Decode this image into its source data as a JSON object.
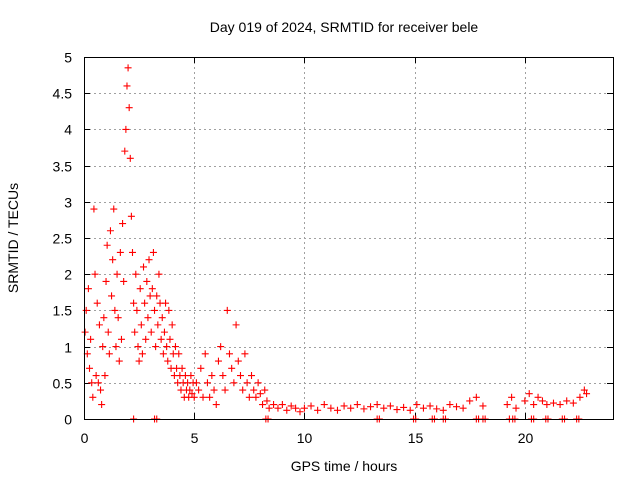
{
  "chart_data": {
    "type": "scatter",
    "title": "Day 019 of 2024, SRMTID for receiver bele",
    "xlabel": "GPS time / hours",
    "ylabel": "SRMTID / TECUs",
    "xlim": [
      0,
      24
    ],
    "ylim": [
      0,
      5
    ],
    "xticks": [
      0,
      5,
      10,
      15,
      20
    ],
    "xtick_labels": [
      "0",
      "5",
      "10",
      "15",
      "20"
    ],
    "yticks": [
      0,
      0.5,
      1,
      1.5,
      2,
      2.5,
      3,
      3.5,
      4,
      4.5,
      5
    ],
    "ytick_labels": [
      "0",
      "0.5",
      "1",
      "1.5",
      "2",
      "2.5",
      "3",
      "3.5",
      "4",
      "4.5",
      "5"
    ],
    "grid": true,
    "marker": "+",
    "color": "#ff0000",
    "series": [
      {
        "name": "SRMTID",
        "points": [
          [
            0.05,
            1.2
          ],
          [
            0.1,
            1.5
          ],
          [
            0.15,
            0.9
          ],
          [
            0.2,
            1.8
          ],
          [
            0.25,
            0.7
          ],
          [
            0.3,
            1.1
          ],
          [
            0.35,
            0.5
          ],
          [
            0.4,
            0.3
          ],
          [
            0.45,
            2.9
          ],
          [
            0.5,
            2.0
          ],
          [
            0.55,
            0.6
          ],
          [
            0.6,
            1.6
          ],
          [
            0.65,
            0.5
          ],
          [
            0.7,
            1.3
          ],
          [
            0.75,
            0.4
          ],
          [
            0.8,
            0.2
          ],
          [
            0.85,
            1.0
          ],
          [
            0.9,
            1.4
          ],
          [
            0.95,
            0.6
          ],
          [
            1.0,
            1.9
          ],
          [
            1.05,
            2.4
          ],
          [
            1.1,
            1.2
          ],
          [
            1.15,
            0.9
          ],
          [
            1.2,
            2.6
          ],
          [
            1.25,
            1.7
          ],
          [
            1.3,
            2.2
          ],
          [
            1.35,
            2.9
          ],
          [
            1.4,
            1.5
          ],
          [
            1.45,
            1.0
          ],
          [
            1.5,
            2.0
          ],
          [
            1.55,
            1.4
          ],
          [
            1.6,
            0.8
          ],
          [
            1.65,
            2.3
          ],
          [
            1.7,
            1.1
          ],
          [
            1.75,
            2.7
          ],
          [
            1.8,
            1.9
          ],
          [
            1.85,
            3.7
          ],
          [
            1.9,
            4.0
          ],
          [
            1.95,
            4.6
          ],
          [
            2.0,
            4.85
          ],
          [
            2.05,
            4.3
          ],
          [
            2.1,
            3.6
          ],
          [
            2.15,
            2.8
          ],
          [
            2.2,
            2.3
          ],
          [
            2.25,
            1.6
          ],
          [
            2.3,
            1.2
          ],
          [
            2.35,
            2.0
          ],
          [
            2.4,
            1.5
          ],
          [
            2.45,
            1.0
          ],
          [
            2.5,
            0.8
          ],
          [
            2.55,
            1.8
          ],
          [
            2.6,
            1.3
          ],
          [
            2.65,
            0.9
          ],
          [
            2.7,
            2.1
          ],
          [
            2.75,
            1.6
          ],
          [
            2.8,
            1.1
          ],
          [
            2.85,
            1.9
          ],
          [
            2.9,
            1.4
          ],
          [
            2.95,
            2.2
          ],
          [
            3.0,
            1.7
          ],
          [
            3.05,
            1.2
          ],
          [
            3.1,
            1.8
          ],
          [
            3.15,
            2.3
          ],
          [
            3.2,
            1.5
          ],
          [
            3.25,
            1.0
          ],
          [
            3.3,
            1.7
          ],
          [
            3.35,
            1.3
          ],
          [
            3.4,
            2.0
          ],
          [
            3.45,
            1.6
          ],
          [
            3.5,
            1.1
          ],
          [
            3.55,
            1.4
          ],
          [
            3.6,
            0.9
          ],
          [
            3.65,
            1.2
          ],
          [
            3.7,
            1.6
          ],
          [
            3.75,
            1.0
          ],
          [
            3.8,
            0.8
          ],
          [
            3.85,
            1.5
          ],
          [
            3.9,
            1.1
          ],
          [
            3.95,
            0.7
          ],
          [
            4.0,
            1.3
          ],
          [
            4.05,
            0.9
          ],
          [
            4.1,
            0.6
          ],
          [
            4.15,
            1.0
          ],
          [
            4.2,
            0.7
          ],
          [
            4.25,
            0.5
          ],
          [
            4.3,
            0.9
          ],
          [
            4.35,
            0.6
          ],
          [
            4.4,
            0.4
          ],
          [
            4.45,
            0.7
          ],
          [
            4.5,
            0.5
          ],
          [
            4.55,
            0.3
          ],
          [
            4.6,
            0.6
          ],
          [
            4.65,
            0.4
          ],
          [
            4.7,
            0.5
          ],
          [
            4.75,
            0.3
          ],
          [
            4.8,
            0.4
          ],
          [
            4.85,
            0.6
          ],
          [
            4.9,
            0.35
          ],
          [
            4.95,
            0.5
          ],
          [
            5.0,
            0.3
          ],
          [
            5.1,
            0.5
          ],
          [
            5.2,
            0.4
          ],
          [
            5.3,
            0.7
          ],
          [
            5.4,
            0.3
          ],
          [
            5.5,
            0.9
          ],
          [
            5.6,
            0.5
          ],
          [
            5.7,
            0.3
          ],
          [
            5.8,
            0.6
          ],
          [
            5.9,
            0.4
          ],
          [
            6.0,
            0.2
          ],
          [
            6.1,
            0.8
          ],
          [
            6.2,
            1.0
          ],
          [
            6.3,
            0.6
          ],
          [
            6.4,
            0.4
          ],
          [
            6.5,
            1.5
          ],
          [
            6.6,
            0.9
          ],
          [
            6.7,
            0.7
          ],
          [
            6.8,
            0.5
          ],
          [
            6.9,
            1.3
          ],
          [
            7.0,
            0.8
          ],
          [
            7.1,
            0.6
          ],
          [
            7.2,
            0.4
          ],
          [
            7.3,
            0.9
          ],
          [
            7.4,
            0.5
          ],
          [
            7.5,
            0.3
          ],
          [
            7.6,
            0.6
          ],
          [
            7.7,
            0.4
          ],
          [
            7.8,
            0.3
          ],
          [
            7.9,
            0.5
          ],
          [
            8.0,
            0.35
          ],
          [
            8.1,
            0.2
          ],
          [
            8.2,
            0.4
          ],
          [
            8.3,
            0.25
          ],
          [
            8.4,
            0.15
          ],
          [
            8.6,
            0.2
          ],
          [
            8.8,
            0.15
          ],
          [
            9.0,
            0.2
          ],
          [
            9.2,
            0.12
          ],
          [
            9.4,
            0.18
          ],
          [
            9.6,
            0.15
          ],
          [
            9.8,
            0.1
          ],
          [
            10.0,
            0.15
          ],
          [
            10.3,
            0.18
          ],
          [
            10.6,
            0.12
          ],
          [
            10.9,
            0.2
          ],
          [
            11.2,
            0.15
          ],
          [
            11.5,
            0.12
          ],
          [
            11.8,
            0.18
          ],
          [
            12.1,
            0.15
          ],
          [
            12.4,
            0.2
          ],
          [
            12.7,
            0.14
          ],
          [
            13.0,
            0.17
          ],
          [
            13.3,
            0.2
          ],
          [
            13.6,
            0.15
          ],
          [
            13.9,
            0.18
          ],
          [
            14.2,
            0.13
          ],
          [
            14.5,
            0.16
          ],
          [
            14.8,
            0.12
          ],
          [
            15.1,
            0.2
          ],
          [
            15.4,
            0.15
          ],
          [
            15.7,
            0.18
          ],
          [
            16.0,
            0.14
          ],
          [
            16.3,
            0.12
          ],
          [
            16.6,
            0.2
          ],
          [
            16.9,
            0.17
          ],
          [
            17.2,
            0.15
          ],
          [
            17.5,
            0.25
          ],
          [
            17.8,
            0.3
          ],
          [
            18.1,
            0.18
          ],
          [
            19.2,
            0.2
          ],
          [
            19.4,
            0.3
          ],
          [
            19.6,
            0.15
          ],
          [
            20.0,
            0.25
          ],
          [
            20.2,
            0.35
          ],
          [
            20.4,
            0.2
          ],
          [
            20.6,
            0.3
          ],
          [
            20.8,
            0.25
          ],
          [
            21.0,
            0.2
          ],
          [
            21.3,
            0.22
          ],
          [
            21.6,
            0.2
          ],
          [
            21.9,
            0.25
          ],
          [
            22.2,
            0.22
          ],
          [
            22.5,
            0.3
          ],
          [
            22.7,
            0.4
          ],
          [
            22.8,
            0.35
          ],
          [
            2.25,
            0.0
          ],
          [
            3.2,
            0.0
          ],
          [
            3.3,
            0.0
          ],
          [
            8.25,
            0.0
          ],
          [
            8.35,
            0.0
          ],
          [
            13.3,
            0.0
          ],
          [
            13.4,
            0.0
          ],
          [
            14.95,
            0.0
          ],
          [
            15.05,
            0.0
          ],
          [
            15.8,
            0.0
          ],
          [
            15.9,
            0.0
          ],
          [
            16.3,
            0.0
          ],
          [
            16.4,
            0.0
          ],
          [
            17.8,
            0.0
          ],
          [
            17.9,
            0.0
          ],
          [
            18.1,
            0.0
          ],
          [
            18.2,
            0.0
          ],
          [
            19.3,
            0.0
          ],
          [
            19.45,
            0.0
          ],
          [
            19.55,
            0.0
          ],
          [
            20.3,
            0.0
          ],
          [
            20.4,
            0.0
          ],
          [
            20.95,
            0.0
          ],
          [
            21.05,
            0.0
          ],
          [
            21.7,
            0.0
          ],
          [
            21.8,
            0.0
          ],
          [
            22.35,
            0.0
          ],
          [
            22.45,
            0.0
          ]
        ]
      }
    ]
  }
}
